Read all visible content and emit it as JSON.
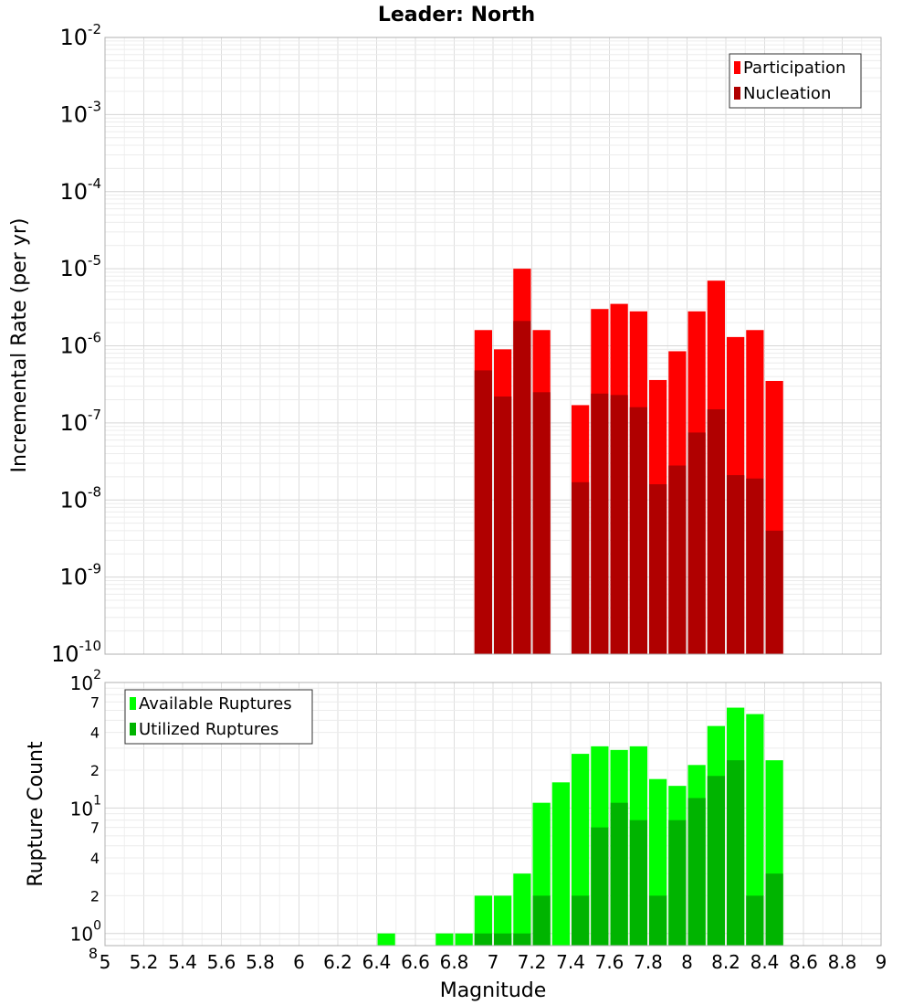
{
  "chart_data": [
    {
      "type": "bar",
      "title": "Leader: North",
      "ylabel": "Incremental Rate (per yr)",
      "xlabel": "",
      "yscale": "log",
      "xlim": [
        5,
        9
      ],
      "ylim": [
        1e-10,
        0.01
      ],
      "bin_width": 0.1,
      "grid": true,
      "legend_position": "top-right",
      "series": [
        {
          "name": "Participation",
          "color": "#ff0000",
          "x": [
            6.95,
            7.05,
            7.15,
            7.25,
            7.45,
            7.55,
            7.65,
            7.75,
            7.85,
            7.95,
            8.05,
            8.15,
            8.25,
            8.35,
            8.45
          ],
          "values": [
            1.6e-06,
            9e-07,
            1e-05,
            1.6e-06,
            1.7e-07,
            3e-06,
            3.5e-06,
            2.8e-06,
            3.6e-07,
            8.5e-07,
            2.8e-06,
            7e-06,
            1.3e-06,
            1.6e-06,
            3.5e-07
          ]
        },
        {
          "name": "Nucleation",
          "color": "#b00000",
          "x": [
            6.95,
            7.05,
            7.15,
            7.25,
            7.45,
            7.55,
            7.65,
            7.75,
            7.85,
            7.95,
            8.05,
            8.15,
            8.25,
            8.35,
            8.45
          ],
          "values": [
            4.8e-07,
            2.2e-07,
            2.1e-06,
            2.5e-07,
            1.7e-08,
            2.4e-07,
            2.3e-07,
            1.6e-07,
            1.6e-08,
            2.8e-08,
            7.5e-08,
            1.5e-07,
            2.1e-08,
            1.9e-08,
            4e-09
          ]
        }
      ],
      "y_ticks": [
        {
          "base": "10",
          "exp": "-2"
        },
        {
          "base": "10",
          "exp": "-3"
        },
        {
          "base": "10",
          "exp": "-4"
        },
        {
          "base": "10",
          "exp": "-5"
        },
        {
          "base": "10",
          "exp": "-6"
        },
        {
          "base": "10",
          "exp": "-7"
        },
        {
          "base": "10",
          "exp": "-8"
        },
        {
          "base": "10",
          "exp": "-9"
        },
        {
          "base": "10",
          "exp": "-10"
        }
      ]
    },
    {
      "type": "bar",
      "title": "",
      "ylabel": "Rupture Count",
      "xlabel": "Magnitude",
      "yscale": "log",
      "xlim": [
        5,
        9
      ],
      "ylim": [
        0.8,
        100
      ],
      "bin_width": 0.1,
      "grid": true,
      "legend_position": "top-left",
      "series": [
        {
          "name": "Available Ruptures",
          "color": "#00ff00",
          "x": [
            6.45,
            6.75,
            6.85,
            6.95,
            7.05,
            7.15,
            7.25,
            7.35,
            7.45,
            7.55,
            7.65,
            7.75,
            7.85,
            7.95,
            8.05,
            8.15,
            8.25,
            8.35,
            8.45
          ],
          "values": [
            1,
            1,
            1,
            2,
            2,
            3,
            11,
            16,
            27,
            31,
            29,
            31,
            17,
            15,
            22,
            45,
            63,
            56,
            24
          ]
        },
        {
          "name": "Utilized Ruptures",
          "color": "#00b400",
          "x": [
            6.95,
            7.05,
            7.15,
            7.25,
            7.45,
            7.55,
            7.65,
            7.75,
            7.85,
            7.95,
            8.05,
            8.15,
            8.25,
            8.35,
            8.45
          ],
          "values": [
            1,
            1,
            1,
            2,
            2,
            7,
            11,
            8,
            2,
            8,
            12,
            18,
            24,
            2,
            3
          ]
        }
      ],
      "y_ticks": [
        {
          "base": "10",
          "exp": "2"
        },
        {
          "base": "7",
          "exp": ""
        },
        {
          "base": "4",
          "exp": ""
        },
        {
          "base": "2",
          "exp": ""
        },
        {
          "base": "10",
          "exp": "1"
        },
        {
          "base": "7",
          "exp": ""
        },
        {
          "base": "4",
          "exp": ""
        },
        {
          "base": "2",
          "exp": ""
        },
        {
          "base": "10",
          "exp": "0"
        },
        {
          "base": "8",
          "exp": ""
        }
      ],
      "x_ticks": [
        "5",
        "5.2",
        "5.4",
        "5.6",
        "5.8",
        "6",
        "6.2",
        "6.4",
        "6.6",
        "6.8",
        "7",
        "7.2",
        "7.4",
        "7.6",
        "7.8",
        "8",
        "8.2",
        "8.4",
        "8.6",
        "8.8",
        "9"
      ]
    }
  ]
}
